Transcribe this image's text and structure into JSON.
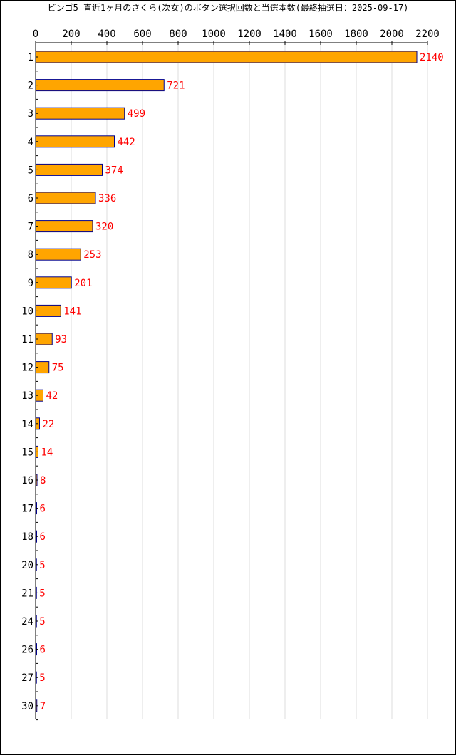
{
  "chart_data": {
    "type": "bar",
    "orientation": "horizontal",
    "title": "ビンゴ5 直近1ヶ月のさくら(次女)のボタン選択回数と当選本数(最終抽選日：2025-09-17)",
    "xlim": [
      0,
      2200
    ],
    "x_ticks": [
      0,
      200,
      400,
      600,
      800,
      1000,
      1200,
      1400,
      1600,
      1800,
      2000,
      2200
    ],
    "grid": true,
    "categories": [
      "1",
      "2",
      "3",
      "4",
      "5",
      "6",
      "7",
      "8",
      "9",
      "10",
      "11",
      "12",
      "13",
      "14",
      "15",
      "16",
      "17",
      "18",
      "20",
      "21",
      "24",
      "26",
      "27",
      "30"
    ],
    "values": [
      2140,
      721,
      499,
      442,
      374,
      336,
      320,
      253,
      201,
      141,
      93,
      75,
      42,
      22,
      14,
      8,
      6,
      6,
      5,
      5,
      5,
      6,
      5,
      7
    ],
    "colors": {
      "bar_fill": "#FFA500",
      "bar_stroke": "#00008B",
      "value_label": "#FF0000",
      "grid": "#DDDDDD",
      "axis": "#000000"
    }
  }
}
